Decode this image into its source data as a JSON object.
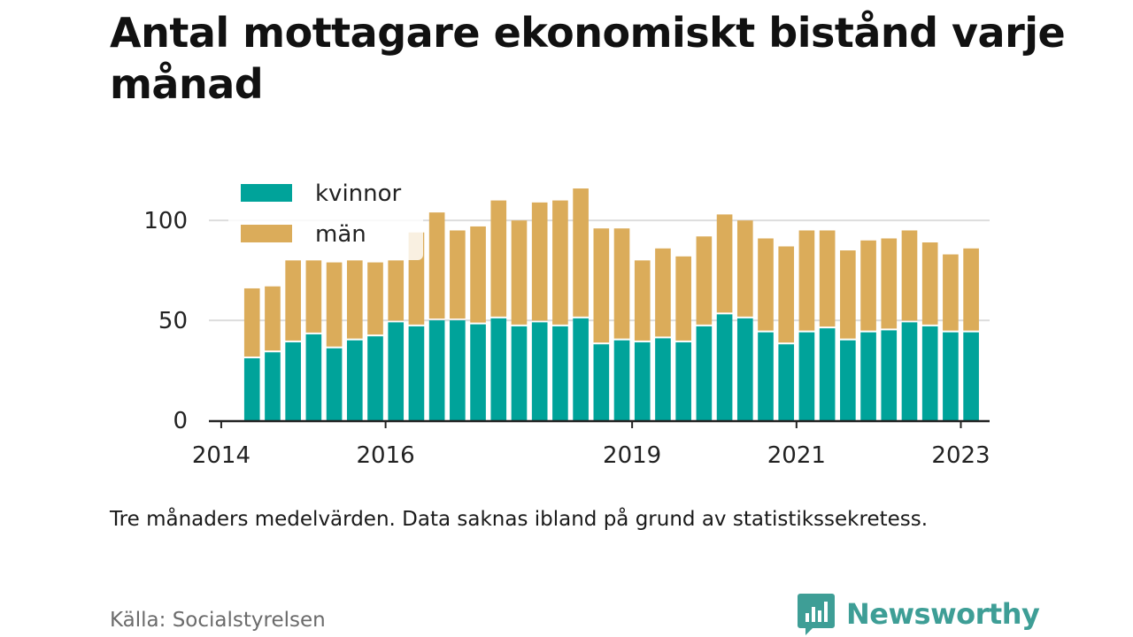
{
  "title": "Antal mottagare ekonomiskt bistånd varje månad",
  "note": "Tre månaders medelvärden. Data saknas ibland på grund av statistikssekretess.",
  "source": "Källa: Socialstyrelsen",
  "brand": {
    "name": "Newsworthy",
    "color": "#3e9e96"
  },
  "chart_data": {
    "type": "bar",
    "stacked": true,
    "legend_position": "top-left",
    "grid": true,
    "ylim": [
      0,
      120
    ],
    "yticks": [
      0,
      50,
      100
    ],
    "xticks": [
      {
        "label": "2014",
        "x": 2014.0
      },
      {
        "label": "2016",
        "x": 2016.0
      },
      {
        "label": "2019",
        "x": 2019.0
      },
      {
        "label": "2021",
        "x": 2021.0
      },
      {
        "label": "2023",
        "x": 2023.0
      }
    ],
    "xlim": [
      2013.85,
      2023.35
    ],
    "x": [
      2014.375,
      2014.625,
      2014.875,
      2015.125,
      2015.375,
      2015.625,
      2015.875,
      2016.125,
      2016.375,
      2016.625,
      2016.875,
      2017.125,
      2017.375,
      2017.625,
      2017.875,
      2018.125,
      2018.375,
      2018.625,
      2018.875,
      2019.125,
      2019.375,
      2019.625,
      2019.875,
      2020.125,
      2020.375,
      2020.625,
      2020.875,
      2021.125,
      2021.375,
      2021.625,
      2021.875,
      2022.125,
      2022.375,
      2022.625,
      2022.875,
      2023.125
    ],
    "series": [
      {
        "name": "kvinnor",
        "color": "#00a39a",
        "values": [
          31,
          34,
          39,
          43,
          36,
          40,
          42,
          49,
          47,
          50,
          50,
          48,
          51,
          47,
          49,
          47,
          51,
          38,
          40,
          39,
          41,
          39,
          47,
          53,
          51,
          44,
          38,
          44,
          46,
          40,
          44,
          45,
          49,
          47,
          44,
          44
        ]
      },
      {
        "name": "män",
        "color": "#dbac5a",
        "values": [
          35,
          33,
          41,
          37,
          43,
          40,
          37,
          31,
          47,
          54,
          45,
          49,
          59,
          53,
          60,
          63,
          65,
          58,
          56,
          41,
          45,
          43,
          45,
          50,
          49,
          47,
          49,
          51,
          49,
          45,
          46,
          46,
          46,
          42,
          39,
          42
        ]
      }
    ]
  }
}
